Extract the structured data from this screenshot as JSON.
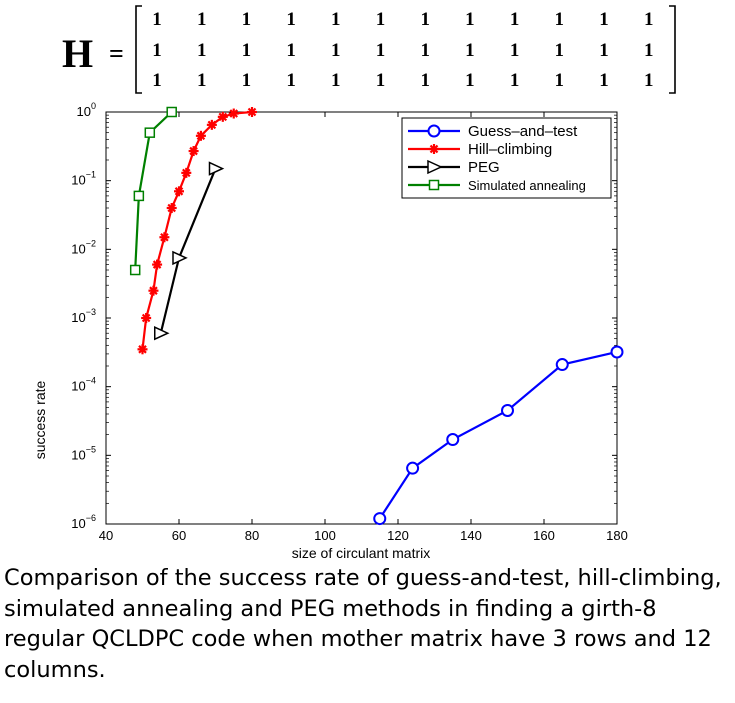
{
  "matrix": {
    "symbol": "H",
    "equals": "=",
    "rows": [
      [
        "1",
        "1",
        "1",
        "1",
        "1",
        "1",
        "1",
        "1",
        "1",
        "1",
        "1",
        "1"
      ],
      [
        "1",
        "1",
        "1",
        "1",
        "1",
        "1",
        "1",
        "1",
        "1",
        "1",
        "1",
        "1"
      ],
      [
        "1",
        "1",
        "1",
        "1",
        "1",
        "1",
        "1",
        "1",
        "1",
        "1",
        "1",
        "1"
      ]
    ]
  },
  "chart_data": {
    "type": "line",
    "title": "",
    "xlabel": "size of circulant matrix",
    "ylabel": "success rate",
    "xlim": [
      40,
      180
    ],
    "ylim": [
      1e-06,
      1
    ],
    "yscale": "log",
    "xticks": [
      "40",
      "60",
      "80",
      "100",
      "120",
      "140",
      "160",
      "180"
    ],
    "yticks": [
      {
        "base": "10",
        "exp": "0",
        "value": 1
      },
      {
        "base": "10",
        "exp": "−1",
        "value": 0.1
      },
      {
        "base": "10",
        "exp": "−2",
        "value": 0.01
      },
      {
        "base": "10",
        "exp": "−3",
        "value": 0.001
      },
      {
        "base": "10",
        "exp": "−4",
        "value": 0.0001
      },
      {
        "base": "10",
        "exp": "−5",
        "value": 1e-05
      },
      {
        "base": "10",
        "exp": "−6",
        "value": 1e-06
      }
    ],
    "grid": false,
    "legend_position": "top-right",
    "series": [
      {
        "name": "Guess–and–test",
        "color": "#0000ff",
        "marker": "circle",
        "x": [
          115,
          124,
          135,
          150,
          165,
          180
        ],
        "y": [
          1.2e-06,
          6.5e-06,
          1.7e-05,
          4.5e-05,
          0.00021,
          0.00032
        ]
      },
      {
        "name": "Hill–climbing",
        "color": "#ff0000",
        "marker": "star",
        "x": [
          50,
          51,
          53,
          54,
          56,
          58,
          60,
          62,
          64,
          66,
          69,
          72,
          75,
          80
        ],
        "y": [
          0.00035,
          0.001,
          0.0025,
          0.006,
          0.015,
          0.04,
          0.07,
          0.13,
          0.27,
          0.45,
          0.65,
          0.85,
          0.95,
          1.0
        ]
      },
      {
        "name": "PEG",
        "color": "#000000",
        "marker": "triangle-right",
        "x": [
          55,
          60,
          70
        ],
        "y": [
          0.0006,
          0.0075,
          0.15
        ]
      },
      {
        "name": "Simulated annealing",
        "color": "#008000",
        "marker": "square",
        "x": [
          48,
          49,
          52,
          58
        ],
        "y": [
          0.005,
          0.06,
          0.5,
          1.0
        ]
      }
    ]
  },
  "caption": "Comparison of the success rate of guess-and-test, hill-climbing, simulated annealing and PEG methods in finding a girth-8 regular QCLDPC code when mother matrix have 3 rows and 12 columns."
}
